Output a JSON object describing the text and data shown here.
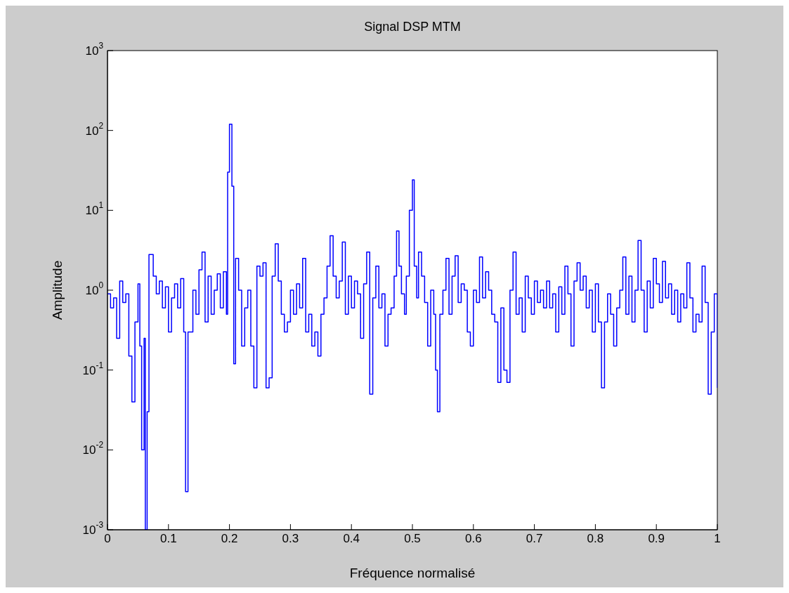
{
  "chart_data": {
    "type": "step",
    "title": "Signal DSP MTM",
    "xlabel": "Fréquence normalisé",
    "ylabel": "Amplitude",
    "log": "y",
    "line_style": "solid",
    "marker": "none",
    "xlim": [
      0,
      1
    ],
    "xticks": [
      0,
      0.1,
      0.2,
      0.3,
      0.4,
      0.5,
      0.6,
      0.7,
      0.8,
      0.9,
      1
    ],
    "ylim": [
      0.001,
      1000
    ],
    "yticks": [
      {
        "value": 0.001,
        "label": "10$^{-3}$"
      },
      {
        "value": 0.01,
        "label": "10$^{-2}$"
      },
      {
        "value": 0.1,
        "label": "10$^{-1}$"
      },
      {
        "value": 1,
        "label": "10$^{0}$"
      },
      {
        "value": 10,
        "label": "10$^{1}$"
      },
      {
        "value": 100,
        "label": "10$^{2}$"
      },
      {
        "value": 1000,
        "label": "10$^{3}$"
      }
    ],
    "x": [
      0,
      0.005,
      0.01,
      0.015,
      0.02,
      0.025,
      0.03,
      0.035,
      0.04,
      0.045,
      0.05,
      0.053,
      0.056,
      0.06,
      0.062,
      0.065,
      0.068,
      0.075,
      0.08,
      0.085,
      0.09,
      0.095,
      0.1,
      0.105,
      0.11,
      0.115,
      0.12,
      0.125,
      0.128,
      0.132,
      0.14,
      0.145,
      0.15,
      0.155,
      0.16,
      0.165,
      0.17,
      0.175,
      0.18,
      0.185,
      0.19,
      0.195,
      0.197,
      0.2,
      0.204,
      0.207,
      0.21,
      0.215,
      0.22,
      0.225,
      0.23,
      0.235,
      0.24,
      0.245,
      0.25,
      0.255,
      0.26,
      0.265,
      0.27,
      0.275,
      0.28,
      0.285,
      0.29,
      0.295,
      0.3,
      0.305,
      0.31,
      0.315,
      0.32,
      0.325,
      0.33,
      0.335,
      0.34,
      0.345,
      0.35,
      0.355,
      0.36,
      0.365,
      0.37,
      0.375,
      0.38,
      0.385,
      0.39,
      0.395,
      0.4,
      0.405,
      0.41,
      0.415,
      0.42,
      0.425,
      0.43,
      0.435,
      0.44,
      0.445,
      0.45,
      0.455,
      0.46,
      0.465,
      0.47,
      0.474,
      0.478,
      0.482,
      0.487,
      0.49,
      0.495,
      0.5,
      0.503,
      0.507,
      0.51,
      0.515,
      0.52,
      0.525,
      0.53,
      0.535,
      0.538,
      0.541,
      0.545,
      0.55,
      0.555,
      0.56,
      0.565,
      0.57,
      0.575,
      0.58,
      0.585,
      0.59,
      0.595,
      0.6,
      0.605,
      0.61,
      0.615,
      0.62,
      0.625,
      0.63,
      0.635,
      0.64,
      0.645,
      0.65,
      0.655,
      0.66,
      0.665,
      0.67,
      0.675,
      0.68,
      0.685,
      0.69,
      0.695,
      0.7,
      0.705,
      0.71,
      0.715,
      0.72,
      0.725,
      0.73,
      0.735,
      0.74,
      0.745,
      0.75,
      0.755,
      0.76,
      0.765,
      0.77,
      0.775,
      0.78,
      0.785,
      0.79,
      0.795,
      0.8,
      0.805,
      0.81,
      0.815,
      0.82,
      0.825,
      0.83,
      0.835,
      0.84,
      0.845,
      0.85,
      0.855,
      0.86,
      0.865,
      0.87,
      0.875,
      0.88,
      0.885,
      0.89,
      0.895,
      0.9,
      0.905,
      0.91,
      0.915,
      0.92,
      0.925,
      0.93,
      0.935,
      0.94,
      0.945,
      0.95,
      0.955,
      0.96,
      0.965,
      0.97,
      0.975,
      0.98,
      0.985,
      0.99,
      0.995,
      1
    ],
    "series": [
      {
        "color": "#0000ff",
        "values": [
          0.9,
          0.6,
          0.8,
          0.25,
          1.3,
          0.7,
          0.9,
          0.15,
          0.04,
          0.4,
          1.2,
          0.2,
          0.01,
          0.25,
          0.001,
          0.03,
          2.8,
          1.5,
          0.9,
          1.3,
          0.6,
          1.1,
          0.3,
          0.8,
          1.2,
          0.6,
          1.4,
          0.3,
          0.003,
          0.3,
          1,
          0.5,
          1.8,
          3,
          0.4,
          1.5,
          0.5,
          1,
          1.6,
          0.6,
          1.7,
          0.5,
          30,
          120,
          20,
          0.12,
          2.5,
          1,
          0.2,
          0.6,
          1,
          0.2,
          0.06,
          2,
          1.5,
          2.2,
          0.06,
          0.08,
          1.5,
          3.8,
          1.3,
          0.5,
          0.3,
          0.4,
          1,
          0.5,
          1.2,
          0.6,
          2.5,
          0.3,
          0.5,
          0.2,
          0.3,
          0.15,
          0.5,
          0.8,
          2,
          4.8,
          1.5,
          0.8,
          1.3,
          4,
          0.5,
          1.5,
          0.6,
          1.3,
          0.9,
          0.25,
          1.2,
          3,
          0.05,
          0.8,
          2,
          0.6,
          0.9,
          0.2,
          0.5,
          0.6,
          1.5,
          5.5,
          2,
          0.9,
          0.5,
          1.5,
          10,
          24,
          2,
          0.8,
          3,
          1.5,
          0.7,
          0.2,
          1,
          0.5,
          0.1,
          0.03,
          0.5,
          1,
          2.5,
          0.5,
          1.5,
          2.7,
          0.7,
          1.2,
          1,
          0.3,
          0.2,
          1,
          0.7,
          2.6,
          0.8,
          1.7,
          1,
          0.5,
          0.4,
          0.07,
          0.6,
          0.1,
          0.07,
          1,
          3,
          0.5,
          0.8,
          0.3,
          1.5,
          0.8,
          0.5,
          1.3,
          0.7,
          1,
          0.6,
          1.3,
          0.6,
          0.9,
          0.3,
          1.1,
          0.5,
          2,
          0.9,
          0.2,
          1.3,
          2.2,
          1,
          1.5,
          0.6,
          1,
          0.3,
          1.2,
          0.4,
          0.06,
          0.4,
          0.9,
          0.5,
          0.2,
          0.6,
          1,
          2.6,
          0.5,
          1.5,
          0.4,
          1,
          4.2,
          1,
          0.3,
          1.3,
          0.6,
          2.5,
          1.2,
          0.7,
          2.3,
          0.8,
          1.2,
          0.5,
          1,
          0.4,
          0.9,
          0.6,
          2.2,
          0.8,
          0.3,
          0.5,
          0.4,
          2,
          0.7,
          0.05,
          0.3,
          0.9,
          0.06
        ]
      }
    ]
  }
}
